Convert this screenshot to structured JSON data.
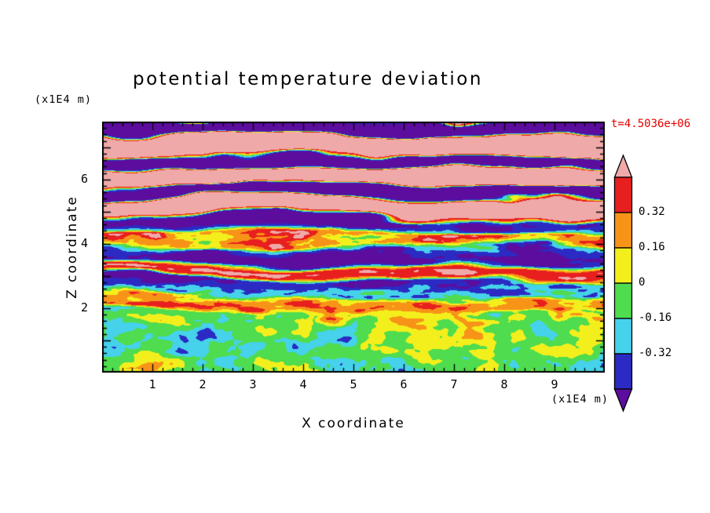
{
  "chart_data": {
    "type": "heatmap",
    "title": "potential temperature deviation",
    "xlabel": "X coordinate",
    "ylabel": "Z coordinate",
    "x_unit_label": "(x1E4 m)",
    "y_unit_label": "(x1E4 m)",
    "time_label": "t=4.5036e+06",
    "time_color": "#e60000",
    "x_range": [
      0,
      10
    ],
    "y_range": [
      0,
      7.8
    ],
    "x_tick_values": [
      1,
      2,
      3,
      4,
      5,
      6,
      7,
      8,
      9
    ],
    "x_tick_labels": [
      "1",
      "2",
      "3",
      "4",
      "5",
      "6",
      "7",
      "8",
      "9"
    ],
    "y_tick_values": [
      2,
      4,
      6
    ],
    "y_tick_labels": [
      "2",
      "4",
      "6"
    ],
    "minor_tick_step": 0.2,
    "colorbar": {
      "labels": [
        "0.32",
        "0.16",
        "0",
        "-0.16",
        "-0.32"
      ],
      "boundaries": [
        0.48,
        0.32,
        0.16,
        0,
        -0.16,
        -0.32,
        -0.48
      ],
      "box_colors_top_to_bottom": [
        "#e81f1f",
        "#f79418",
        "#f3ef1c",
        "#4fdc4f",
        "#45d2ea",
        "#2b2bc4"
      ],
      "over_color": "#efa9a9",
      "under_color": "#5c0d9e"
    },
    "field": {
      "seed": 7,
      "description": "Stratified region above z~2 made of horizontally elongated pink (strong positive) and purple (strong negative) layers with thin multicolored green/yellow/red filament layers near z~4 and z~2.4; turbulent convective boundary layer below z~2 dominated by green and yellow eddies with cyan patches, dark blue cores and scattered orange-red plumes."
    }
  }
}
